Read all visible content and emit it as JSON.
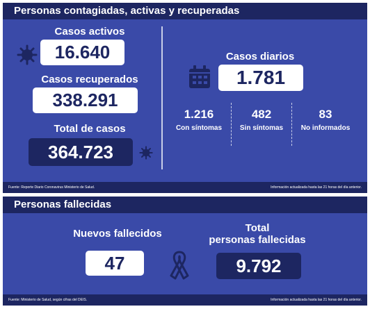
{
  "top": {
    "title": "Personas contagiadas, activas y recuperadas",
    "activos": {
      "label": "Casos activos",
      "value": "16.640"
    },
    "recuperados": {
      "label": "Casos recuperados",
      "value": "338.291"
    },
    "total": {
      "label": "Total de casos",
      "value": "364.723"
    },
    "diarios": {
      "label": "Casos diarios",
      "value": "1.781"
    },
    "breakdown": [
      {
        "value": "1.216",
        "label": "Con síntomas"
      },
      {
        "value": "482",
        "label": "Sin síntomas"
      },
      {
        "value": "83",
        "label": "No informados"
      }
    ],
    "footer_source": "Fuente: Reporte Diario Coronavirus Ministerio de Salud.",
    "footer_update": "Información actualizada hasta las 21 horas  del día anterior."
  },
  "bottom": {
    "title": "Personas fallecidas",
    "nuevos": {
      "label": "Nuevos fallecidos",
      "value": "47"
    },
    "total": {
      "label_line1": "Total",
      "label_line2": "personas fallecidas",
      "value": "9.792"
    },
    "footer_source": "Fuente: Ministerio de Salud, según cifras del DEIS.",
    "footer_update": "Información actualizada hasta las 21 horas  del día anterior."
  },
  "icons": [
    "virus-icon",
    "calendar-icon",
    "ribbon-icon"
  ],
  "colors": {
    "panel": "#3a4aa8",
    "header": "#1d2661",
    "box_text": "#1d2661"
  }
}
